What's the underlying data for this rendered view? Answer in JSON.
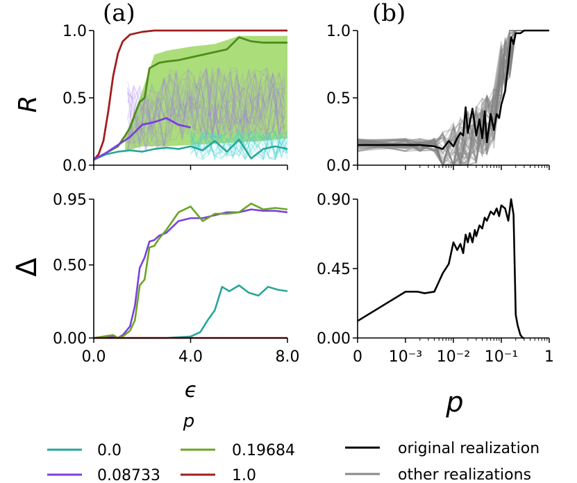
{
  "panel_labels": {
    "a": "(a)",
    "b": "(b)"
  },
  "legend": {
    "title": "p",
    "items": [
      {
        "label": "0.0",
        "color": "#26a69a"
      },
      {
        "label": "0.08733",
        "color": "#7b3fe0"
      },
      {
        "label": "0.19684",
        "color": "#6aa621"
      },
      {
        "label": "1.0",
        "color": "#a31d1d"
      }
    ],
    "realizations": [
      {
        "label": "original realization",
        "color": "#000000"
      },
      {
        "label": "other realizations",
        "color": "#888888"
      }
    ]
  },
  "chart_data": [
    {
      "id": "a-top",
      "type": "line",
      "title": "",
      "xlabel": "",
      "ylabel": "R",
      "xlim": [
        0,
        8
      ],
      "ylim": [
        0,
        1
      ],
      "yticks": [
        0,
        0.5,
        1.0
      ],
      "ytick_labels": [
        "0.0",
        "0.5",
        "1.0"
      ],
      "xticks": [
        0,
        4,
        8
      ],
      "xtick_labels": [
        "",
        "",
        ""
      ],
      "series": [
        {
          "name": "1.0",
          "color": "#a31d1d",
          "x": [
            0,
            0.2,
            0.4,
            0.6,
            0.8,
            1.0,
            1.2,
            1.5,
            2.0,
            2.5,
            3,
            4,
            5,
            6,
            7,
            8
          ],
          "y": [
            0.04,
            0.08,
            0.18,
            0.4,
            0.66,
            0.83,
            0.92,
            0.97,
            0.99,
            1.0,
            1.0,
            1.0,
            1.0,
            1.0,
            1.0,
            1.0
          ]
        },
        {
          "name": "0.19684",
          "color": "#4f8c1a",
          "x": [
            0,
            0.5,
            1.0,
            1.3,
            1.5,
            1.7,
            1.9,
            2.1,
            2.3,
            2.5,
            2.7,
            3,
            3.5,
            4,
            4.5,
            5,
            5.5,
            6,
            6.5,
            7,
            7.5,
            8
          ],
          "y": [
            0.04,
            0.09,
            0.14,
            0.22,
            0.28,
            0.38,
            0.47,
            0.5,
            0.72,
            0.74,
            0.76,
            0.77,
            0.78,
            0.8,
            0.82,
            0.84,
            0.86,
            0.95,
            0.92,
            0.91,
            0.91,
            0.91
          ]
        },
        {
          "name": "0.0",
          "color": "#26a69a",
          "x": [
            0,
            0.5,
            1.0,
            1.5,
            2.0,
            2.5,
            3,
            3.5,
            4,
            4.5,
            5,
            5.5,
            6,
            6.5,
            7,
            7.5,
            8
          ],
          "y": [
            0.04,
            0.08,
            0.1,
            0.11,
            0.1,
            0.12,
            0.13,
            0.12,
            0.14,
            0.11,
            0.18,
            0.1,
            0.19,
            0.05,
            0.12,
            0.14,
            0.12
          ]
        },
        {
          "name": "0.08733",
          "color": "#7b3fe0",
          "x": [
            0,
            0.5,
            1.0,
            1.5,
            2.0,
            2.5,
            3.0,
            3.5,
            4.0
          ],
          "y": [
            0.04,
            0.09,
            0.15,
            0.21,
            0.3,
            0.32,
            0.35,
            0.3,
            0.28
          ]
        }
      ]
    },
    {
      "id": "a-bottom",
      "type": "line",
      "title": "",
      "xlabel": "ϵ",
      "ylabel": "Δ",
      "xlim": [
        0,
        8
      ],
      "ylim": [
        0,
        0.95
      ],
      "yticks": [
        0,
        0.5,
        0.95
      ],
      "ytick_labels": [
        "0.00",
        "0.50",
        "0.95"
      ],
      "xticks": [
        0,
        4,
        8
      ],
      "xtick_labels": [
        "0.0",
        "4.0",
        "8.0"
      ],
      "series": [
        {
          "name": "0.0",
          "color": "#26a69a",
          "x": [
            0,
            3,
            4,
            4.4,
            4.7,
            5,
            5.3,
            5.6,
            6,
            6.4,
            6.8,
            7.2,
            7.6,
            8
          ],
          "y": [
            0,
            0,
            0.01,
            0.04,
            0.12,
            0.19,
            0.35,
            0.32,
            0.36,
            0.31,
            0.29,
            0.35,
            0.33,
            0.32
          ]
        },
        {
          "name": "0.08733",
          "color": "#7b3fe0",
          "x": [
            0,
            0.8,
            1.0,
            1.2,
            1.5,
            1.7,
            1.9,
            2.1,
            2.3,
            2.5,
            2.7,
            3,
            3.5,
            4,
            4.5,
            5,
            5.5,
            6,
            6.5,
            7,
            7.5,
            8
          ],
          "y": [
            0,
            0.01,
            0,
            0.02,
            0.08,
            0.22,
            0.48,
            0.55,
            0.66,
            0.67,
            0.7,
            0.72,
            0.8,
            0.82,
            0.82,
            0.84,
            0.86,
            0.86,
            0.88,
            0.87,
            0.87,
            0.86
          ]
        },
        {
          "name": "0.19684",
          "color": "#6aa621",
          "x": [
            0,
            0.8,
            1.0,
            1.2,
            1.5,
            1.7,
            1.9,
            2.1,
            2.3,
            2.5,
            2.7,
            3,
            3.5,
            4,
            4.5,
            5,
            5.5,
            6,
            6.5,
            7,
            7.5,
            8
          ],
          "y": [
            0,
            0.02,
            0,
            0.01,
            0.05,
            0.12,
            0.36,
            0.4,
            0.62,
            0.63,
            0.68,
            0.74,
            0.86,
            0.9,
            0.8,
            0.85,
            0.85,
            0.86,
            0.92,
            0.88,
            0.89,
            0.88
          ]
        },
        {
          "name": "1.0",
          "color": "#a31d1d",
          "x": [
            0,
            8
          ],
          "y": [
            0,
            0
          ]
        }
      ]
    },
    {
      "id": "b-top",
      "type": "line",
      "title": "",
      "xlabel": "",
      "ylabel": "",
      "xscale": "symlog",
      "xlim": [
        0,
        1
      ],
      "ylim": [
        0,
        1
      ],
      "yticks": [
        0,
        0.5,
        1.0
      ],
      "ytick_labels": [
        "0.0",
        "0.5",
        "1.0"
      ],
      "xticks": [
        0,
        0.001,
        0.01,
        0.1,
        1
      ],
      "xtick_labels": [
        "",
        "",
        "",
        "",
        ""
      ],
      "series": [
        {
          "name": "original realization",
          "color": "#000000",
          "x": [
            0,
            0.0008,
            0.002,
            0.004,
            0.006,
            0.008,
            0.01,
            0.012,
            0.014,
            0.016,
            0.018,
            0.02,
            0.025,
            0.03,
            0.035,
            0.04,
            0.045,
            0.05,
            0.06,
            0.07,
            0.08,
            0.09,
            0.1,
            0.12,
            0.14,
            0.16,
            0.18,
            0.2,
            0.25,
            0.3,
            0.5,
            1
          ],
          "y": [
            0.15,
            0.15,
            0.15,
            0.14,
            0.12,
            0.18,
            0.14,
            0.2,
            0.24,
            0.22,
            0.43,
            0.24,
            0.42,
            0.22,
            0.34,
            0.2,
            0.4,
            0.17,
            0.38,
            0.26,
            0.38,
            0.35,
            0.45,
            0.55,
            0.75,
            0.95,
            0.9,
            0.98,
            0.98,
            1.0,
            1.0,
            1.0
          ]
        }
      ]
    },
    {
      "id": "b-bottom",
      "type": "line",
      "title": "",
      "xlabel": "p",
      "ylabel": "",
      "xscale": "symlog",
      "xlim": [
        0,
        1
      ],
      "ylim": [
        0,
        0.9
      ],
      "yticks": [
        0,
        0.45,
        0.9
      ],
      "ytick_labels": [
        "0.00",
        "0.45",
        "0.90"
      ],
      "xticks": [
        0,
        0.001,
        0.01,
        0.1,
        1
      ],
      "xtick_labels": [
        "0",
        "10⁻³",
        "10⁻²",
        "10⁻¹",
        "1"
      ],
      "series": [
        {
          "name": "original realization",
          "color": "#000000",
          "x": [
            0,
            0.001,
            0.0018,
            0.0025,
            0.004,
            0.006,
            0.008,
            0.01,
            0.012,
            0.014,
            0.016,
            0.018,
            0.02,
            0.022,
            0.025,
            0.028,
            0.03,
            0.035,
            0.04,
            0.045,
            0.05,
            0.06,
            0.07,
            0.08,
            0.09,
            0.1,
            0.12,
            0.14,
            0.16,
            0.18,
            0.2,
            0.22,
            0.25,
            0.28,
            0.3
          ],
          "y": [
            0.11,
            0.3,
            0.3,
            0.29,
            0.3,
            0.42,
            0.48,
            0.62,
            0.57,
            0.61,
            0.55,
            0.67,
            0.62,
            0.68,
            0.62,
            0.7,
            0.66,
            0.73,
            0.71,
            0.78,
            0.76,
            0.82,
            0.8,
            0.84,
            0.79,
            0.86,
            0.84,
            0.76,
            0.9,
            0.8,
            0.15,
            0.08,
            0.02,
            0,
            0
          ]
        }
      ]
    }
  ]
}
